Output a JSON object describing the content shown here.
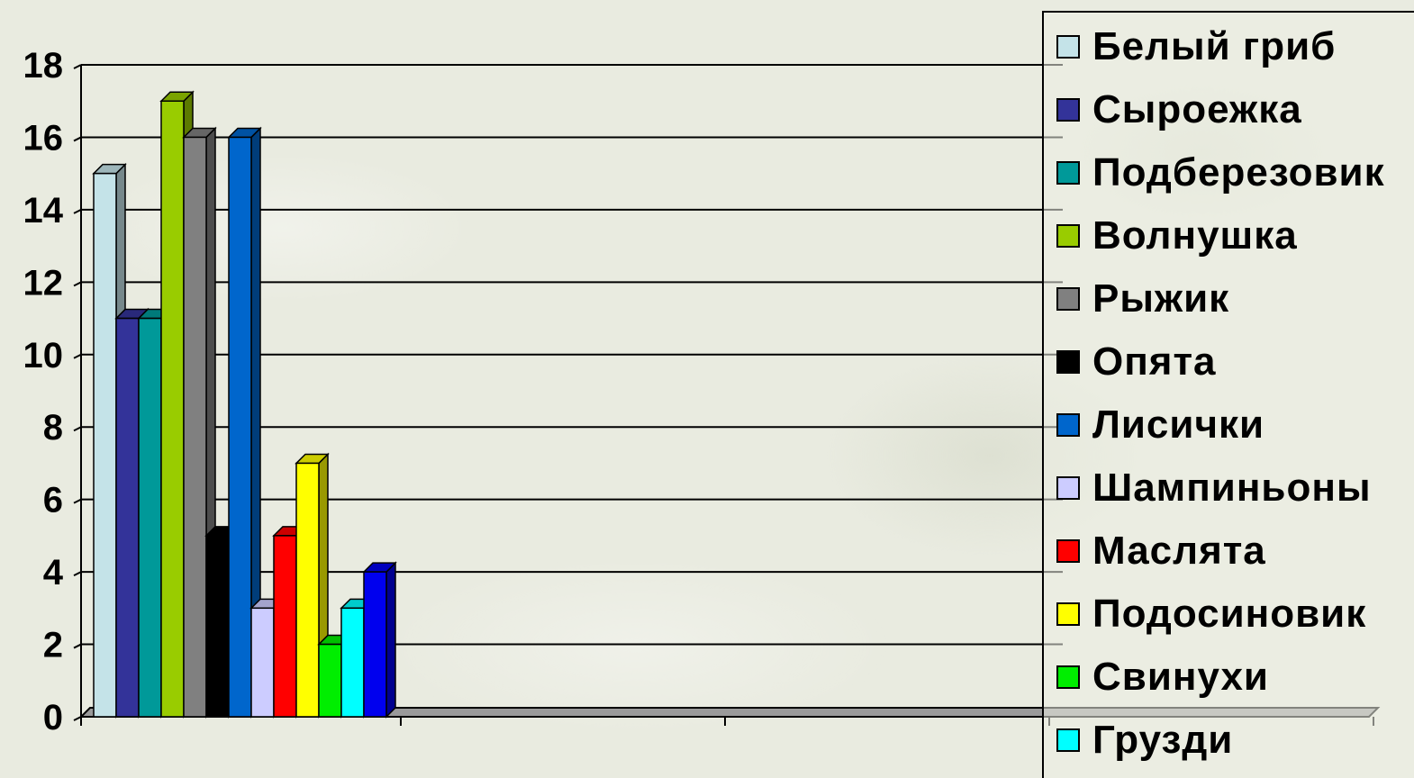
{
  "chart_data": {
    "type": "bar",
    "title": "",
    "xlabel": "",
    "ylabel": "",
    "ylim": [
      0,
      18
    ],
    "yticks": [
      "0",
      "2",
      "4",
      "6",
      "8",
      "10",
      "12",
      "14",
      "16",
      "18"
    ],
    "grid": true,
    "legend_position": "right",
    "categories": [
      ""
    ],
    "series": [
      {
        "name": "Белый гриб",
        "values": [
          15
        ],
        "color": "#c4e3e8"
      },
      {
        "name": "Сыроежка",
        "values": [
          11
        ],
        "color": "#333399"
      },
      {
        "name": "Подберезовик",
        "values": [
          11
        ],
        "color": "#009999"
      },
      {
        "name": "Волнушка",
        "values": [
          17
        ],
        "color": "#99cc00"
      },
      {
        "name": "Рыжик",
        "values": [
          16
        ],
        "color": "#808080"
      },
      {
        "name": "Опята",
        "values": [
          5
        ],
        "color": "#000000"
      },
      {
        "name": "Лисички",
        "values": [
          16
        ],
        "color": "#0066cc"
      },
      {
        "name": "Шампиньоны",
        "values": [
          3
        ],
        "color": "#ccccff"
      },
      {
        "name": "Маслята",
        "values": [
          5
        ],
        "color": "#ff0000"
      },
      {
        "name": "Подосиновик",
        "values": [
          7
        ],
        "color": "#ffff00"
      },
      {
        "name": "Свинухи",
        "values": [
          2
        ],
        "color": "#00ee00"
      },
      {
        "name": "Грузди",
        "values": [
          3
        ],
        "color": "#00ffff"
      },
      {
        "name": "",
        "values": [
          4
        ],
        "color": "#0000ee"
      }
    ]
  }
}
